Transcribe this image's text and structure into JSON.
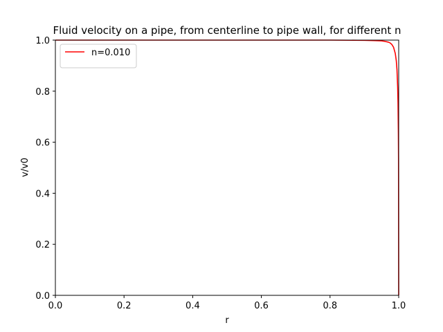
{
  "chart_data": {
    "type": "line",
    "title": "Fluid velocity on a pipe, from centerline to pipe wall, for different n",
    "xlabel": "r",
    "ylabel": "v/v0",
    "xlim": [
      0.0,
      1.0
    ],
    "ylim": [
      0.0,
      1.0
    ],
    "grid": false,
    "legend_position": "top-left",
    "x_ticks": [
      "0.0",
      "0.2",
      "0.4",
      "0.6",
      "0.8",
      "1.0"
    ],
    "y_ticks": [
      "0.0",
      "0.2",
      "0.4",
      "0.6",
      "0.8",
      "1.0"
    ],
    "series": [
      {
        "name": "n=0.010",
        "color": "#ff0000",
        "x": [
          0.0,
          0.5,
          0.8,
          0.9,
          0.93,
          0.95,
          0.96,
          0.97,
          0.975,
          0.98,
          0.985,
          0.99,
          0.993,
          0.995,
          0.997,
          0.998,
          0.999,
          0.9995,
          1.0
        ],
        "y": [
          1.0,
          1.0,
          1.0,
          0.999,
          0.998,
          0.997,
          0.995,
          0.992,
          0.989,
          0.983,
          0.972,
          0.948,
          0.919,
          0.884,
          0.815,
          0.753,
          0.639,
          0.535,
          0.0
        ]
      }
    ]
  }
}
